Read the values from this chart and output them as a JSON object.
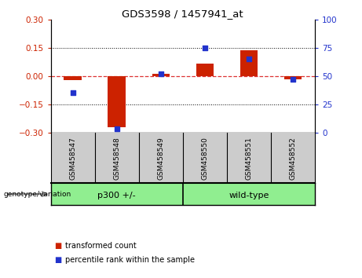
{
  "title": "GDS3598 / 1457941_at",
  "samples": [
    "GSM458547",
    "GSM458548",
    "GSM458549",
    "GSM458550",
    "GSM458551",
    "GSM458552"
  ],
  "red_values": [
    -0.02,
    -0.27,
    0.01,
    0.065,
    0.135,
    -0.018
  ],
  "blue_values_pct": [
    35,
    3,
    52,
    75,
    65,
    47
  ],
  "ylim_left": [
    -0.3,
    0.3
  ],
  "ylim_right": [
    0,
    100
  ],
  "yticks_left": [
    -0.3,
    -0.15,
    0.0,
    0.15,
    0.3
  ],
  "yticks_right": [
    0,
    25,
    50,
    75,
    100
  ],
  "group_label": "genotype/variation",
  "group_p300_label": "p300 +/-",
  "group_wt_label": "wild-type",
  "legend_red": "transformed count",
  "legend_blue": "percentile rank within the sample",
  "bar_width": 0.4,
  "red_color": "#CC2200",
  "blue_color": "#2233CC",
  "hline_color": "#DD3333",
  "background_plot": "#FFFFFF",
  "background_labels": "#CCCCCC",
  "background_group": "#90EE90",
  "background_fig": "#FFFFFF"
}
